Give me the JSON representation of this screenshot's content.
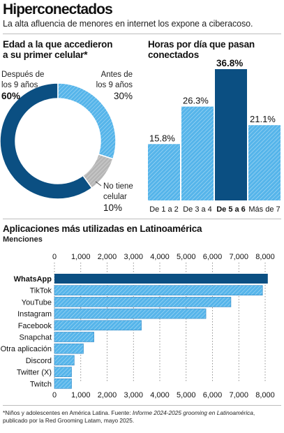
{
  "header": {
    "title": "Hiperconectados",
    "subtitle": "La alta afluencia de menores en internet los expone a ciberacoso."
  },
  "colors": {
    "dark_blue": "#0b4f82",
    "light_blue": "#56b5ea",
    "gray": "#b6b6b6",
    "rule": "#bdbdbd"
  },
  "donut_section": {
    "title_line1": "Edad a la que accedieron",
    "title_line2": "a su primer celular*"
  },
  "hours_section": {
    "title_line1": "Horas por día que pasan",
    "title_line2": "conectados"
  },
  "apps_section": {
    "title": "Aplicaciones más utilizadas en Latinoamérica",
    "subtitle": "Menciones"
  },
  "footnote": {
    "before": "*Niños y adolescentes en América Latina. Fuente: ",
    "source_title": "Informe 2024-2025 grooming en Latinoamérica",
    "after": ", publicado por la Red Grooming Latam, mayo 2025."
  },
  "chart_data": [
    {
      "type": "pie",
      "variant": "donut",
      "slices": [
        {
          "label_line1": "Después de",
          "label_line2": "los 9 años",
          "value": 60,
          "value_label": "60%",
          "color": "dark_blue",
          "pattern": "solid"
        },
        {
          "label_line1": "Antes de",
          "label_line2": "los 9 años",
          "value": 30,
          "value_label": "30%",
          "color": "light_blue",
          "pattern": "hatched"
        },
        {
          "label_line1": "No tiene",
          "label_line2": "celular",
          "value": 10,
          "value_label": "10%",
          "color": "gray",
          "pattern": "hatched"
        }
      ]
    },
    {
      "type": "bar",
      "orientation": "vertical",
      "categories": [
        "De 1 a 2",
        "De 3 a 4",
        "De 5 a 6",
        "Más de 7"
      ],
      "values": [
        15.8,
        26.3,
        36.8,
        21.1
      ],
      "value_labels": [
        "15.8%",
        "26.3%",
        "36.8%",
        "21.1%"
      ],
      "highlight": "De 5 a 6",
      "ylim": [
        0,
        36.8
      ]
    },
    {
      "type": "bar",
      "orientation": "horizontal",
      "categories": [
        "WhatsApp",
        "TikTok",
        "YouTube",
        "Instagram",
        "Facebook",
        "Snapchat",
        "Otra aplicación",
        "Discord",
        "Twitter (X)",
        "Twitch"
      ],
      "values": [
        8100,
        7900,
        6700,
        5750,
        3300,
        1500,
        1100,
        750,
        650,
        650
      ],
      "highlight": "WhatsApp",
      "ticks": [
        "0",
        "1,000",
        "2,000",
        "3,000",
        "4,000",
        "5,000",
        "6,000",
        "7,000",
        "8,000"
      ],
      "xlim": [
        0,
        8000
      ],
      "grid": true
    }
  ]
}
